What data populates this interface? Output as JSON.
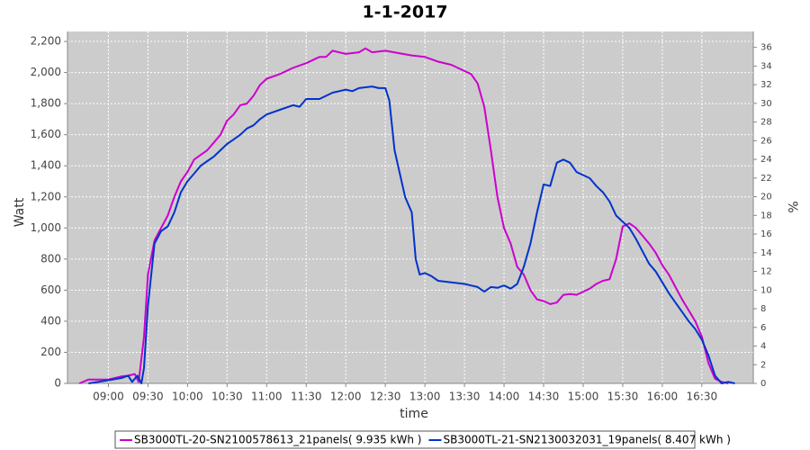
{
  "chart_data": {
    "type": "line",
    "title": "1-1-2017",
    "x_label": "time",
    "y_label": "Watt",
    "y2_label": "%",
    "xlim": [
      "08:29",
      "17:09"
    ],
    "xticks": [
      "09:00",
      "09:30",
      "10:00",
      "10:30",
      "11:00",
      "11:30",
      "12:00",
      "12:30",
      "13:00",
      "13:30",
      "14:00",
      "14:30",
      "15:00",
      "15:30",
      "16:00",
      "16:30"
    ],
    "ylim": [
      0,
      2264
    ],
    "yticks": [
      0,
      200,
      400,
      600,
      800,
      {
        "value": 1000,
        "label": "1,000"
      },
      {
        "value": 1200,
        "label": "1,200"
      },
      {
        "value": 1400,
        "label": "1,400"
      },
      {
        "value": 1600,
        "label": "1,600"
      },
      {
        "value": 1800,
        "label": "1,800"
      },
      {
        "value": 2000,
        "label": "2,000"
      },
      {
        "value": 2200,
        "label": "2,200"
      }
    ],
    "y2lim": [
      0,
      37.7
    ],
    "y2ticks": [
      0,
      2,
      4,
      6,
      8,
      10,
      12,
      14,
      16,
      18,
      20,
      22,
      24,
      26,
      28,
      30,
      32,
      34,
      36
    ],
    "grid": true,
    "legend": "bottom",
    "series": [
      {
        "name": "SB3000TL-20-SN2100578613_21panels( 9.935 kWh )",
        "color": "#cc00cc",
        "x": [
          "08:38",
          "08:45",
          "09:00",
          "09:10",
          "09:15",
          "09:20",
          "09:23",
          "09:27",
          "09:30",
          "09:35",
          "09:40",
          "09:45",
          "09:50",
          "09:55",
          "10:00",
          "10:05",
          "10:10",
          "10:15",
          "10:20",
          "10:25",
          "10:30",
          "10:35",
          "10:40",
          "10:45",
          "10:50",
          "10:55",
          "11:00",
          "11:10",
          "11:20",
          "11:30",
          "11:40",
          "11:45",
          "11:50",
          "12:00",
          "12:10",
          "12:15",
          "12:20",
          "12:30",
          "12:40",
          "12:50",
          "13:00",
          "13:10",
          "13:20",
          "13:30",
          "13:35",
          "13:40",
          "13:45",
          "13:50",
          "13:55",
          "14:00",
          "14:05",
          "14:10",
          "14:15",
          "14:20",
          "14:25",
          "14:30",
          "14:35",
          "14:40",
          "14:45",
          "14:50",
          "14:55",
          "15:00",
          "15:05",
          "15:10",
          "15:15",
          "15:20",
          "15:25",
          "15:30",
          "15:35",
          "15:40",
          "15:45",
          "15:50",
          "15:55",
          "16:00",
          "16:05",
          "16:10",
          "16:15",
          "16:20",
          "16:25",
          "16:30",
          "16:35",
          "16:40",
          "16:45",
          "16:50"
        ],
        "values": [
          0,
          25,
          25,
          45,
          50,
          60,
          10,
          300,
          700,
          920,
          1000,
          1080,
          1200,
          1300,
          1360,
          1440,
          1470,
          1500,
          1550,
          1600,
          1690,
          1730,
          1790,
          1800,
          1850,
          1920,
          1960,
          1990,
          2030,
          2060,
          2100,
          2100,
          2140,
          2120,
          2130,
          2155,
          2130,
          2140,
          2125,
          2110,
          2100,
          2070,
          2050,
          2010,
          1990,
          1930,
          1780,
          1500,
          1200,
          1000,
          900,
          750,
          700,
          600,
          540,
          530,
          510,
          520,
          570,
          575,
          570,
          590,
          610,
          640,
          660,
          670,
          800,
          1010,
          1030,
          1000,
          950,
          900,
          840,
          760,
          700,
          620,
          540,
          470,
          400,
          300,
          130,
          30,
          10,
          0
        ]
      },
      {
        "name": "SB3000TL-21-SN2130032031_19panels( 8.407 kWh )",
        "color": "#0033cc",
        "x": [
          "08:45",
          "09:00",
          "09:10",
          "09:15",
          "09:18",
          "09:22",
          "09:25",
          "09:27",
          "09:30",
          "09:35",
          "09:40",
          "09:45",
          "09:50",
          "09:55",
          "10:00",
          "10:05",
          "10:10",
          "10:15",
          "10:20",
          "10:25",
          "10:30",
          "10:35",
          "10:40",
          "10:45",
          "10:50",
          "10:55",
          "11:00",
          "11:10",
          "11:20",
          "11:25",
          "11:30",
          "11:40",
          "11:50",
          "12:00",
          "12:05",
          "12:10",
          "12:20",
          "12:25",
          "12:30",
          "12:33",
          "12:37",
          "12:45",
          "12:50",
          "12:53",
          "12:56",
          "13:00",
          "13:05",
          "13:10",
          "13:20",
          "13:30",
          "13:35",
          "13:40",
          "13:45",
          "13:50",
          "13:55",
          "14:00",
          "14:05",
          "14:10",
          "14:15",
          "14:20",
          "14:25",
          "14:30",
          "14:35",
          "14:40",
          "14:45",
          "14:50",
          "14:55",
          "15:00",
          "15:05",
          "15:10",
          "15:15",
          "15:20",
          "15:25",
          "15:30",
          "15:35",
          "15:40",
          "15:45",
          "15:50",
          "15:55",
          "16:00",
          "16:05",
          "16:10",
          "16:15",
          "16:20",
          "16:25",
          "16:30",
          "16:35",
          "16:40",
          "16:45",
          "16:50",
          "16:55"
        ],
        "values": [
          0,
          20,
          35,
          50,
          10,
          50,
          0,
          100,
          500,
          900,
          980,
          1010,
          1100,
          1230,
          1300,
          1350,
          1400,
          1430,
          1460,
          1500,
          1540,
          1570,
          1600,
          1640,
          1660,
          1700,
          1730,
          1760,
          1790,
          1780,
          1830,
          1830,
          1870,
          1890,
          1880,
          1900,
          1910,
          1900,
          1900,
          1820,
          1500,
          1200,
          1100,
          800,
          700,
          710,
          690,
          660,
          650,
          640,
          630,
          620,
          590,
          620,
          615,
          630,
          610,
          640,
          750,
          900,
          1100,
          1280,
          1270,
          1420,
          1440,
          1420,
          1360,
          1340,
          1320,
          1270,
          1230,
          1170,
          1080,
          1040,
          1000,
          930,
          850,
          770,
          720,
          650,
          580,
          520,
          460,
          400,
          350,
          280,
          180,
          50,
          0,
          10,
          0
        ]
      }
    ]
  }
}
